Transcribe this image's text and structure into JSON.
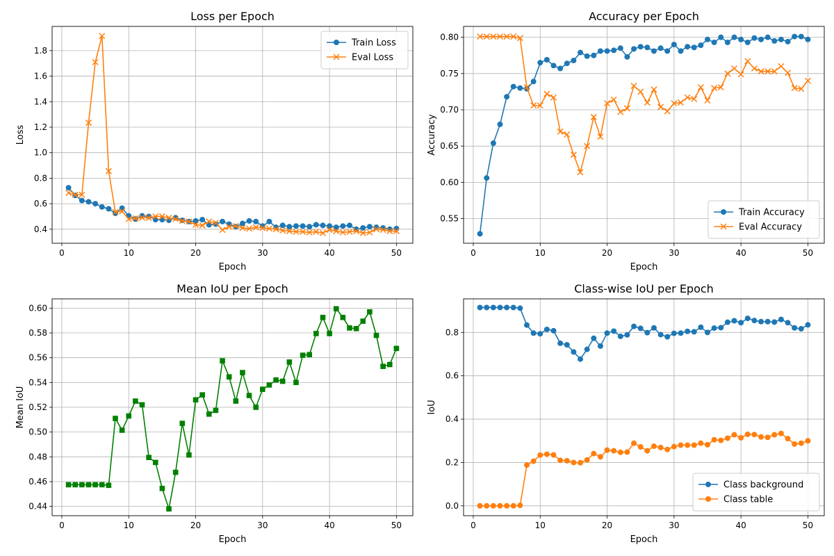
{
  "colors": {
    "blue": "#1f77b4",
    "orange": "#ff7f0e",
    "green": "#008000",
    "grid": "#b0b0b0"
  },
  "chart_data": [
    {
      "type": "line",
      "title": "Loss per Epoch",
      "xlabel": "Epoch",
      "ylabel": "Loss",
      "xlim": [
        -1.45,
        52.45
      ],
      "ylim": [
        0.29,
        1.99
      ],
      "xticks": [
        0,
        10,
        20,
        30,
        40,
        50
      ],
      "yticks": [
        0.4,
        0.6,
        0.8,
        1.0,
        1.2,
        1.4,
        1.6,
        1.8
      ],
      "ytick_labels": [
        "0.4",
        "0.6",
        "0.8",
        "1.0",
        "1.2",
        "1.4",
        "1.6",
        "1.8"
      ],
      "grid": true,
      "legend_placement": "top-right",
      "x": [
        1,
        2,
        3,
        4,
        5,
        6,
        7,
        8,
        9,
        10,
        11,
        12,
        13,
        14,
        15,
        16,
        17,
        18,
        19,
        20,
        21,
        22,
        23,
        24,
        25,
        26,
        27,
        28,
        29,
        30,
        31,
        32,
        33,
        34,
        35,
        36,
        37,
        38,
        39,
        40,
        41,
        42,
        43,
        44,
        45,
        46,
        47,
        48,
        49,
        50
      ],
      "series": [
        {
          "name": "Train Loss",
          "color": "blue",
          "marker": "circle",
          "values": [
            0.725,
            0.665,
            0.625,
            0.615,
            0.6,
            0.575,
            0.56,
            0.525,
            0.565,
            0.505,
            0.48,
            0.505,
            0.5,
            0.475,
            0.475,
            0.47,
            0.49,
            0.47,
            0.46,
            0.465,
            0.475,
            0.435,
            0.44,
            0.46,
            0.44,
            0.42,
            0.445,
            0.465,
            0.46,
            0.425,
            0.46,
            0.415,
            0.43,
            0.42,
            0.425,
            0.425,
            0.42,
            0.435,
            0.43,
            0.425,
            0.415,
            0.425,
            0.43,
            0.4,
            0.41,
            0.42,
            0.415,
            0.41,
            0.4,
            0.405
          ]
        },
        {
          "name": "Eval Loss",
          "color": "orange",
          "marker": "x",
          "values": [
            0.685,
            0.67,
            0.67,
            1.235,
            1.71,
            1.915,
            0.855,
            0.535,
            0.54,
            0.48,
            0.485,
            0.49,
            0.49,
            0.5,
            0.5,
            0.49,
            0.48,
            0.465,
            0.46,
            0.435,
            0.43,
            0.46,
            0.45,
            0.395,
            0.42,
            0.425,
            0.41,
            0.405,
            0.415,
            0.41,
            0.405,
            0.4,
            0.39,
            0.385,
            0.38,
            0.38,
            0.375,
            0.38,
            0.37,
            0.395,
            0.385,
            0.375,
            0.38,
            0.385,
            0.37,
            0.375,
            0.4,
            0.395,
            0.385,
            0.385
          ]
        }
      ]
    },
    {
      "type": "line",
      "title": "Accuracy per Epoch",
      "xlabel": "Epoch",
      "ylabel": "Accuracy",
      "xlim": [
        -1.45,
        52.45
      ],
      "ylim": [
        0.516,
        0.815
      ],
      "xticks": [
        0,
        10,
        20,
        30,
        40,
        50
      ],
      "yticks": [
        0.55,
        0.6,
        0.65,
        0.7,
        0.75,
        0.8
      ],
      "ytick_labels": [
        "0.55",
        "0.60",
        "0.65",
        "0.70",
        "0.75",
        "0.80"
      ],
      "grid": true,
      "legend_placement": "bottom-right",
      "x": [
        1,
        2,
        3,
        4,
        5,
        6,
        7,
        8,
        9,
        10,
        11,
        12,
        13,
        14,
        15,
        16,
        17,
        18,
        19,
        20,
        21,
        22,
        23,
        24,
        25,
        26,
        27,
        28,
        29,
        30,
        31,
        32,
        33,
        34,
        35,
        36,
        37,
        38,
        39,
        40,
        41,
        42,
        43,
        44,
        45,
        46,
        47,
        48,
        49,
        50
      ],
      "series": [
        {
          "name": "Train Accuracy",
          "color": "blue",
          "marker": "circle",
          "values": [
            0.529,
            0.606,
            0.654,
            0.68,
            0.718,
            0.732,
            0.73,
            0.729,
            0.739,
            0.765,
            0.769,
            0.761,
            0.757,
            0.764,
            0.768,
            0.779,
            0.774,
            0.775,
            0.781,
            0.781,
            0.782,
            0.785,
            0.773,
            0.784,
            0.787,
            0.786,
            0.781,
            0.785,
            0.781,
            0.79,
            0.781,
            0.787,
            0.786,
            0.789,
            0.797,
            0.793,
            0.8,
            0.793,
            0.8,
            0.797,
            0.793,
            0.799,
            0.797,
            0.8,
            0.795,
            0.797,
            0.794,
            0.801,
            0.801,
            0.797
          ]
        },
        {
          "name": "Eval Accuracy",
          "color": "orange",
          "marker": "x",
          "values": [
            0.801,
            0.801,
            0.801,
            0.801,
            0.801,
            0.801,
            0.799,
            0.731,
            0.706,
            0.706,
            0.722,
            0.717,
            0.67,
            0.666,
            0.638,
            0.614,
            0.65,
            0.69,
            0.663,
            0.709,
            0.714,
            0.697,
            0.702,
            0.733,
            0.725,
            0.71,
            0.728,
            0.704,
            0.698,
            0.709,
            0.71,
            0.717,
            0.715,
            0.731,
            0.713,
            0.73,
            0.731,
            0.75,
            0.757,
            0.749,
            0.767,
            0.757,
            0.753,
            0.753,
            0.753,
            0.76,
            0.751,
            0.73,
            0.729,
            0.74
          ]
        }
      ]
    },
    {
      "type": "line",
      "title": "Mean IoU per Epoch",
      "xlabel": "Epoch",
      "ylabel": "Mean IoU",
      "xlim": [
        -1.45,
        52.45
      ],
      "ylim": [
        0.4325,
        0.6075
      ],
      "xticks": [
        0,
        10,
        20,
        30,
        40,
        50
      ],
      "yticks": [
        0.44,
        0.46,
        0.48,
        0.5,
        0.52,
        0.54,
        0.56,
        0.58,
        0.6
      ],
      "ytick_labels": [
        "0.44",
        "0.46",
        "0.48",
        "0.50",
        "0.52",
        "0.54",
        "0.56",
        "0.58",
        "0.60"
      ],
      "grid": true,
      "legend_placement": "",
      "x": [
        1,
        2,
        3,
        4,
        5,
        6,
        7,
        8,
        9,
        10,
        11,
        12,
        13,
        14,
        15,
        16,
        17,
        18,
        19,
        20,
        21,
        22,
        23,
        24,
        25,
        26,
        27,
        28,
        29,
        30,
        31,
        32,
        33,
        34,
        35,
        36,
        37,
        38,
        39,
        40,
        41,
        42,
        43,
        44,
        45,
        46,
        47,
        48,
        49,
        50
      ],
      "series": [
        {
          "color": "green",
          "marker": "square",
          "values": [
            0.4575,
            0.4575,
            0.4575,
            0.4575,
            0.4575,
            0.4575,
            0.457,
            0.511,
            0.5015,
            0.513,
            0.525,
            0.522,
            0.4795,
            0.4755,
            0.4545,
            0.438,
            0.4675,
            0.507,
            0.4815,
            0.526,
            0.53,
            0.5145,
            0.5175,
            0.5575,
            0.5445,
            0.525,
            0.548,
            0.5295,
            0.52,
            0.5345,
            0.538,
            0.542,
            0.541,
            0.5565,
            0.54,
            0.562,
            0.5625,
            0.5795,
            0.5925,
            0.5795,
            0.5995,
            0.5925,
            0.584,
            0.5835,
            0.5895,
            0.597,
            0.578,
            0.553,
            0.5545,
            0.5675
          ]
        }
      ]
    },
    {
      "type": "line",
      "title": "Class-wise IoU per Epoch",
      "xlabel": "Epoch",
      "ylabel": "IoU",
      "xlim": [
        -1.45,
        52.45
      ],
      "ylim": [
        -0.0455,
        0.955
      ],
      "xticks": [
        0,
        10,
        20,
        30,
        40,
        50
      ],
      "yticks": [
        0.0,
        0.2,
        0.4,
        0.6,
        0.8
      ],
      "ytick_labels": [
        "0.0",
        "0.2",
        "0.4",
        "0.6",
        "0.8"
      ],
      "grid": true,
      "legend_placement": "bottom-right",
      "x": [
        1,
        2,
        3,
        4,
        5,
        6,
        7,
        8,
        9,
        10,
        11,
        12,
        13,
        14,
        15,
        16,
        17,
        18,
        19,
        20,
        21,
        22,
        23,
        24,
        25,
        26,
        27,
        28,
        29,
        30,
        31,
        32,
        33,
        34,
        35,
        36,
        37,
        38,
        39,
        40,
        41,
        42,
        43,
        44,
        45,
        46,
        47,
        48,
        49,
        50
      ],
      "series": [
        {
          "name": "Class background",
          "color": "blue",
          "marker": "circle",
          "values": [
            0.915,
            0.915,
            0.915,
            0.915,
            0.915,
            0.915,
            0.912,
            0.834,
            0.797,
            0.794,
            0.814,
            0.808,
            0.75,
            0.743,
            0.71,
            0.677,
            0.722,
            0.773,
            0.737,
            0.797,
            0.806,
            0.782,
            0.789,
            0.828,
            0.819,
            0.799,
            0.821,
            0.79,
            0.78,
            0.796,
            0.797,
            0.805,
            0.803,
            0.824,
            0.8,
            0.82,
            0.822,
            0.847,
            0.854,
            0.845,
            0.865,
            0.855,
            0.85,
            0.85,
            0.848,
            0.86,
            0.845,
            0.821,
            0.817,
            0.835
          ]
        },
        {
          "name": "Class table",
          "color": "orange",
          "marker": "circle",
          "values": [
            0.0,
            0.0,
            0.0,
            0.0,
            0.0,
            0.0,
            0.002,
            0.188,
            0.206,
            0.234,
            0.238,
            0.235,
            0.21,
            0.208,
            0.2,
            0.199,
            0.212,
            0.241,
            0.226,
            0.257,
            0.254,
            0.247,
            0.248,
            0.289,
            0.272,
            0.254,
            0.275,
            0.269,
            0.26,
            0.273,
            0.28,
            0.28,
            0.28,
            0.289,
            0.282,
            0.305,
            0.302,
            0.312,
            0.328,
            0.314,
            0.33,
            0.329,
            0.318,
            0.316,
            0.328,
            0.334,
            0.31,
            0.285,
            0.289,
            0.3
          ]
        }
      ]
    }
  ]
}
